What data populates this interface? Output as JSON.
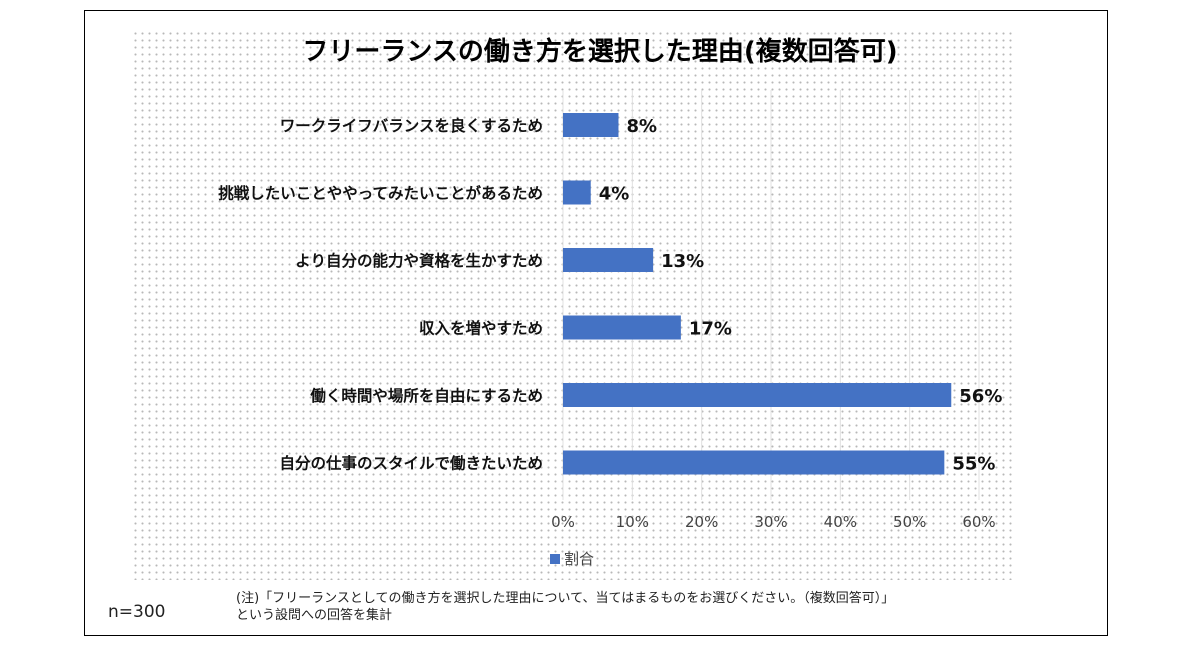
{
  "chart_data": {
    "type": "bar",
    "orientation": "horizontal",
    "title": "フリーランスの働き方を選択した理由(複数回答可)",
    "categories": [
      "ワークライフバランスを良くするため",
      "挑戦したいことややってみたいことがあるため",
      "より自分の能力や資格を生かすため",
      "収入を増やすため",
      "働く時間や場所を自由にするため",
      "自分の仕事のスタイルで働きたいため"
    ],
    "series": [
      {
        "name": "割合",
        "values": [
          8,
          4,
          13,
          17,
          56,
          55
        ],
        "labels": [
          "8%",
          "4%",
          "13%",
          "17%",
          "56%",
          "55%"
        ],
        "color": "#4472c4"
      }
    ],
    "xlim": [
      0,
      60
    ],
    "xticks": [
      "0%",
      "10%",
      "20%",
      "30%",
      "40%",
      "50%",
      "60%"
    ],
    "xlabel": "",
    "ylabel": "",
    "grid": true,
    "legend": "bottom"
  },
  "footer": {
    "n_label": "n=300",
    "note_line1": "(注)「フリーランスとしての働き方を選択した理由について、当てはまるものをお選びください。（複数回答可）」",
    "note_line2": "という設問への回答を集計"
  }
}
